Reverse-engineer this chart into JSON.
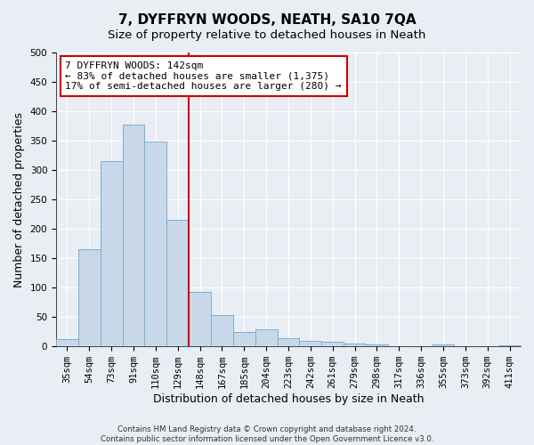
{
  "title": "7, DYFFRYN WOODS, NEATH, SA10 7QA",
  "subtitle": "Size of property relative to detached houses in Neath",
  "xlabel": "Distribution of detached houses by size in Neath",
  "ylabel": "Number of detached properties",
  "footer1": "Contains HM Land Registry data © Crown copyright and database right 2024.",
  "footer2": "Contains public sector information licensed under the Open Government Licence v3.0.",
  "bar_labels": [
    "35sqm",
    "54sqm",
    "73sqm",
    "91sqm",
    "110sqm",
    "129sqm",
    "148sqm",
    "167sqm",
    "185sqm",
    "204sqm",
    "223sqm",
    "242sqm",
    "261sqm",
    "279sqm",
    "298sqm",
    "317sqm",
    "336sqm",
    "355sqm",
    "373sqm",
    "392sqm",
    "411sqm"
  ],
  "bar_values": [
    13,
    165,
    315,
    378,
    348,
    215,
    93,
    54,
    24,
    29,
    14,
    10,
    8,
    5,
    3,
    0,
    0,
    3,
    0,
    1,
    2
  ],
  "bar_color": "#c8d8e8",
  "bar_edge_color": "#7aafd4",
  "vline_x": 6,
  "vline_color": "#cc0000",
  "annotation_text": "7 DYFFRYN WOODS: 142sqm\n← 83% of detached houses are smaller (1,375)\n17% of semi-detached houses are larger (280) →",
  "annotation_box_color": "#ffffff",
  "annotation_box_edge": "#cc0000",
  "ylim": [
    0,
    500
  ],
  "yticks": [
    0,
    50,
    100,
    150,
    200,
    250,
    300,
    350,
    400,
    450,
    500
  ],
  "background_color": "#e8eef4",
  "grid_color": "#ffffff",
  "title_fontsize": 11,
  "subtitle_fontsize": 9.5,
  "axis_label_fontsize": 9,
  "tick_fontsize": 7.5,
  "annotation_fontsize": 8
}
